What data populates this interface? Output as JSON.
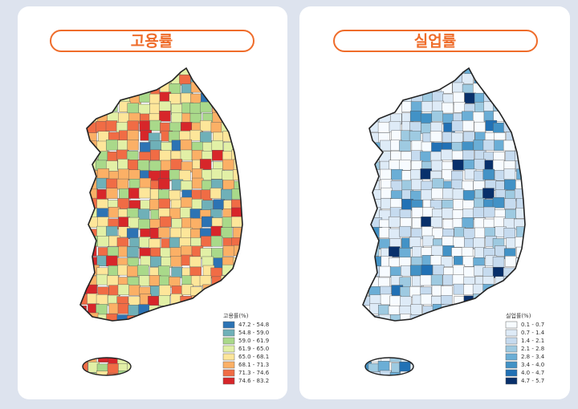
{
  "panels": [
    {
      "title": "고용률",
      "legend_title": "고용률(%)",
      "weights": [
        1,
        2,
        4,
        6,
        6,
        6,
        4,
        2
      ],
      "legend": [
        {
          "label": "47.2 - 54.8",
          "color": "#2c73b4"
        },
        {
          "label": "54.8 - 59.0",
          "color": "#6fb0b8"
        },
        {
          "label": "59.0 - 61.9",
          "color": "#a9d98a"
        },
        {
          "label": "61.9 - 65.0",
          "color": "#e2f0a6"
        },
        {
          "label": "65.0 - 68.1",
          "color": "#fde69a"
        },
        {
          "label": "68.1 - 71.3",
          "color": "#fbb066"
        },
        {
          "label": "71.3 - 74.6",
          "color": "#f06c45"
        },
        {
          "label": "74.6 - 83.2",
          "color": "#d7262a"
        }
      ]
    },
    {
      "title": "실업률",
      "legend_title": "실업률(%)",
      "weights": [
        10,
        8,
        6,
        4,
        3,
        2,
        1,
        1
      ],
      "legend": [
        {
          "label": "0.1 - 0.7",
          "color": "#f7fbff"
        },
        {
          "label": "0.7 - 1.4",
          "color": "#deebf7"
        },
        {
          "label": "1.4 - 2.1",
          "color": "#c6dbef"
        },
        {
          "label": "2.1 - 2.8",
          "color": "#9ecae1"
        },
        {
          "label": "2.8 - 3.4",
          "color": "#6baed6"
        },
        {
          "label": "3.4 - 4.0",
          "color": "#4292c6"
        },
        {
          "label": "4.0 - 4.7",
          "color": "#2171b5"
        },
        {
          "label": "4.7 - 5.7",
          "color": "#08306b"
        }
      ]
    }
  ]
}
